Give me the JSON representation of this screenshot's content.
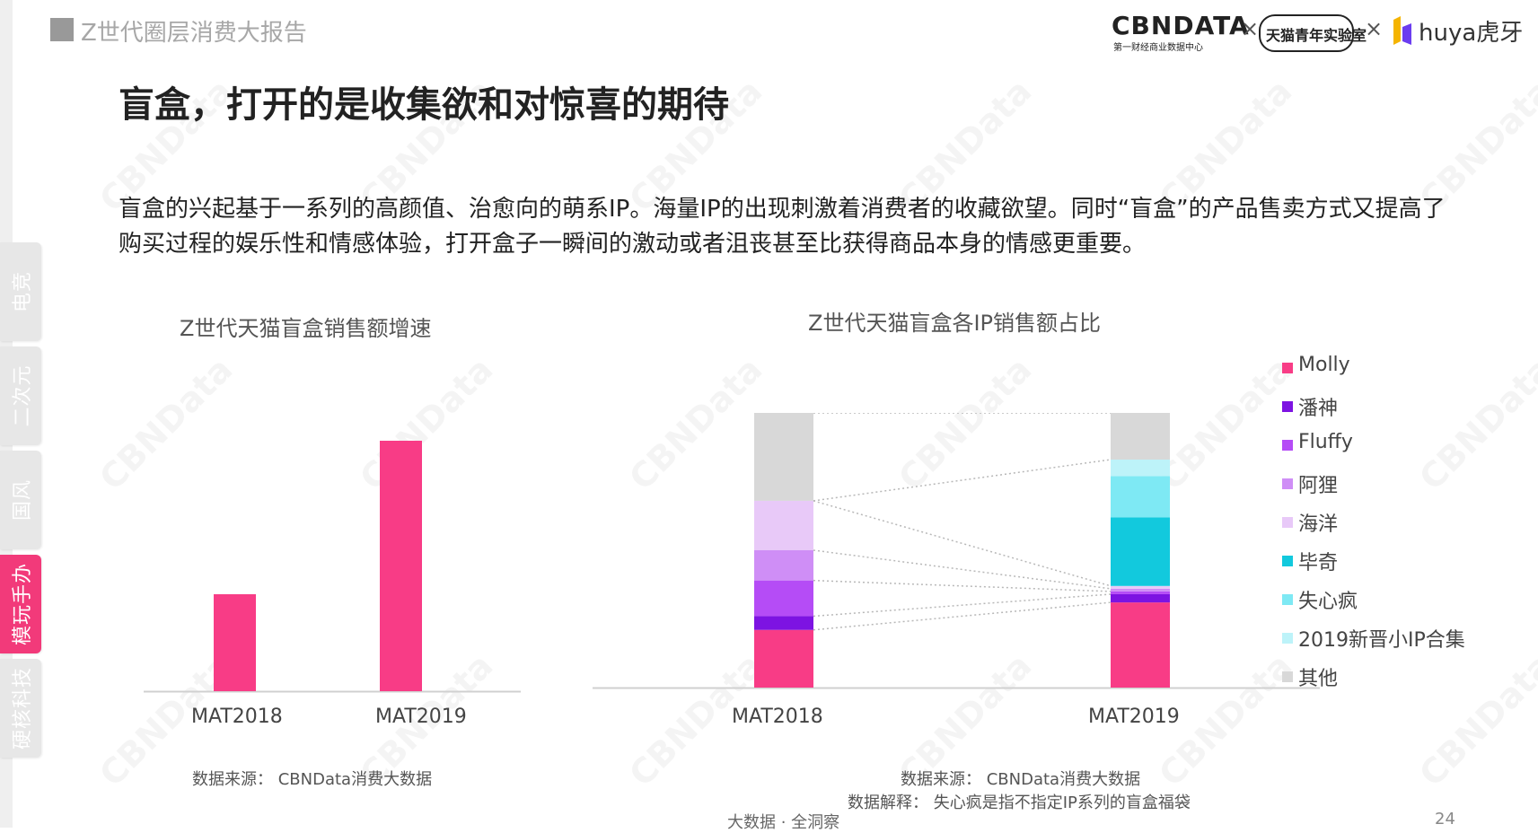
{
  "header": {
    "report_title": "Z世代圈层消费大报告"
  },
  "logos": {
    "cbndata": "CBNDATA",
    "cbndata_sub": "第一财经商业数据中心",
    "separator": "×",
    "tmall_lab": "天猫青年实验室",
    "huya": "huya虎牙"
  },
  "side_tabs": [
    "电竞",
    "二次元",
    "国风",
    "模玩手办",
    "硬核科技"
  ],
  "active_tab": 3,
  "title": "盲盒，打开的是收集欲和对惊喜的期待",
  "paragraph": "盲盒的兴起基于一系列的高颜值、治愈向的萌系IP。海量IP的出现刺激着消费者的收藏欲望。同时“盲盒”的产品售卖方式又提高了购买过程的娱乐性和情感体验，打开盒子一瞬间的激动或者沮丧甚至比获得商品本身的情感更重要。",
  "watermark": "CBNData",
  "chart_data": [
    {
      "type": "bar",
      "title": "Z世代天猫盲盒销售额增速",
      "categories": [
        "MAT2018",
        "MAT2019"
      ],
      "values": [
        0.36,
        0.93
      ],
      "ylim": [
        0,
        1
      ],
      "color": "#f83c86",
      "grid": false
    },
    {
      "type": "bar",
      "stacked": true,
      "percent": true,
      "title": "Z世代天猫盲盒各IP销售额占比",
      "categories": [
        "MAT2018",
        "MAT2019"
      ],
      "legend_position": "right",
      "series": [
        {
          "name": "Molly",
          "color": "#f83c86",
          "values": [
            21,
            31
          ]
        },
        {
          "name": "潘神",
          "color": "#7d13e2",
          "values": [
            5,
            3
          ]
        },
        {
          "name": "Fluffy",
          "color": "#b54cf6",
          "values": [
            13,
            1
          ]
        },
        {
          "name": "阿狸",
          "color": "#cf8ef6",
          "values": [
            11,
            1
          ]
        },
        {
          "name": "海洋",
          "color": "#e8c9f8",
          "values": [
            18,
            1
          ]
        },
        {
          "name": "毕奇",
          "color": "#12c9dd",
          "values": [
            0,
            25
          ]
        },
        {
          "name": "失心疯",
          "color": "#7ee9f4",
          "values": [
            0,
            15
          ]
        },
        {
          "name": "2019新晋小IP合集",
          "color": "#bdf3f9",
          "values": [
            0,
            6
          ]
        },
        {
          "name": "其他",
          "color": "#d8d8d8",
          "values": [
            32,
            17
          ]
        }
      ]
    }
  ],
  "notes": {
    "left_source": "数据来源： CBNData消费大数据",
    "right_source": "数据来源： CBNData消费大数据",
    "right_explain": "数据解释： 失心疯是指不指定IP系列的盲盒福袋"
  },
  "footer": "大数据 · 全洞察",
  "page_number": "24"
}
